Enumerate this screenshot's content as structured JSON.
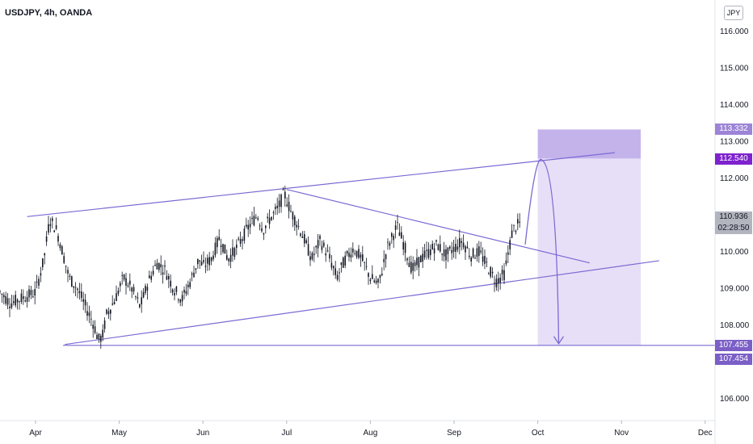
{
  "header": {
    "symbol": "USDJPY, 4h, OANDA",
    "currency_button": "JPY"
  },
  "price_tags": {
    "upper_box": "113.332",
    "target": "112.540",
    "current_price": "110.936",
    "countdown": "02:28:50",
    "support_a": "107.455",
    "support_b": "107.454"
  },
  "colors": {
    "drawing": "#7b6ad4",
    "box_dark": "#b9a6e6",
    "box_light": "#e4dbf6",
    "candle": "#131722",
    "tag_target": "#7e22ce"
  },
  "chart_data": {
    "type": "line",
    "title": "USDJPY, 4h, OANDA",
    "xlabel": "",
    "ylabel": "",
    "x_ticks": [
      "Apr",
      "May",
      "Jun",
      "Jul",
      "Aug",
      "Sep",
      "Oct",
      "Nov",
      "Dec"
    ],
    "y_ticks": [
      "116.000",
      "115.000",
      "114.000",
      "113.000",
      "112.000",
      "110.000",
      "109.000",
      "108.000",
      "106.000"
    ],
    "ylim": [
      105.3,
      116.8
    ],
    "grid": false,
    "series": [
      {
        "values": [
          [
            -0.5,
            109.1
          ],
          [
            -0.3,
            108.6
          ],
          [
            0,
            108.9
          ],
          [
            0.1,
            109.8
          ],
          [
            0.17,
            110.9
          ],
          [
            0.25,
            110.6
          ],
          [
            0.3,
            110.2
          ],
          [
            0.4,
            109.3
          ],
          [
            0.5,
            109.0
          ],
          [
            0.6,
            108.5
          ],
          [
            0.7,
            108.0
          ],
          [
            0.75,
            107.6
          ],
          [
            0.8,
            107.7
          ],
          [
            0.85,
            108.3
          ],
          [
            0.95,
            108.7
          ],
          [
            1.05,
            109.3
          ],
          [
            1.15,
            109.0
          ],
          [
            1.25,
            108.5
          ],
          [
            1.35,
            109.2
          ],
          [
            1.45,
            109.7
          ],
          [
            1.55,
            109.5
          ],
          [
            1.65,
            109.0
          ],
          [
            1.75,
            108.7
          ],
          [
            1.85,
            109.2
          ],
          [
            1.95,
            109.8
          ],
          [
            2.0,
            109.6
          ],
          [
            2.1,
            109.8
          ],
          [
            2.2,
            110.4
          ],
          [
            2.3,
            109.8
          ],
          [
            2.4,
            110.1
          ],
          [
            2.55,
            110.7
          ],
          [
            2.65,
            111.0
          ],
          [
            2.72,
            110.6
          ],
          [
            2.8,
            110.9
          ],
          [
            2.9,
            111.2
          ],
          [
            2.97,
            111.6
          ],
          [
            3.05,
            111.1
          ],
          [
            3.12,
            110.8
          ],
          [
            3.2,
            110.4
          ],
          [
            3.3,
            109.8
          ],
          [
            3.4,
            110.3
          ],
          [
            3.5,
            109.9
          ],
          [
            3.6,
            109.3
          ],
          [
            3.7,
            109.8
          ],
          [
            3.8,
            110.1
          ],
          [
            3.9,
            109.8
          ],
          [
            4.0,
            109.3
          ],
          [
            4.1,
            109.1
          ],
          [
            4.2,
            110.1
          ],
          [
            4.32,
            110.7
          ],
          [
            4.4,
            110.2
          ],
          [
            4.5,
            109.5
          ],
          [
            4.6,
            109.8
          ],
          [
            4.7,
            110.0
          ],
          [
            4.8,
            110.2
          ],
          [
            4.9,
            109.9
          ],
          [
            5.0,
            110.1
          ],
          [
            5.1,
            110.3
          ],
          [
            5.2,
            109.9
          ],
          [
            5.3,
            110.0
          ],
          [
            5.4,
            109.6
          ],
          [
            5.5,
            109.2
          ],
          [
            5.6,
            109.4
          ],
          [
            5.7,
            110.6
          ],
          [
            5.8,
            110.8
          ]
        ]
      }
    ],
    "drawings": {
      "upper_channel": [
        [
          -0.1,
          110.96
        ],
        [
          6.92,
          112.7
        ]
      ],
      "lower_channel": [
        [
          0.35,
          107.48
        ],
        [
          7.45,
          109.76
        ]
      ],
      "descending_line": [
        [
          3.0,
          111.7
        ],
        [
          6.62,
          109.7
        ]
      ],
      "horizontal_support": 107.455,
      "projection_box": {
        "x_range": [
          6.0,
          7.23
        ],
        "top": 113.332,
        "mid": 112.54,
        "bottom": 107.455
      }
    }
  }
}
